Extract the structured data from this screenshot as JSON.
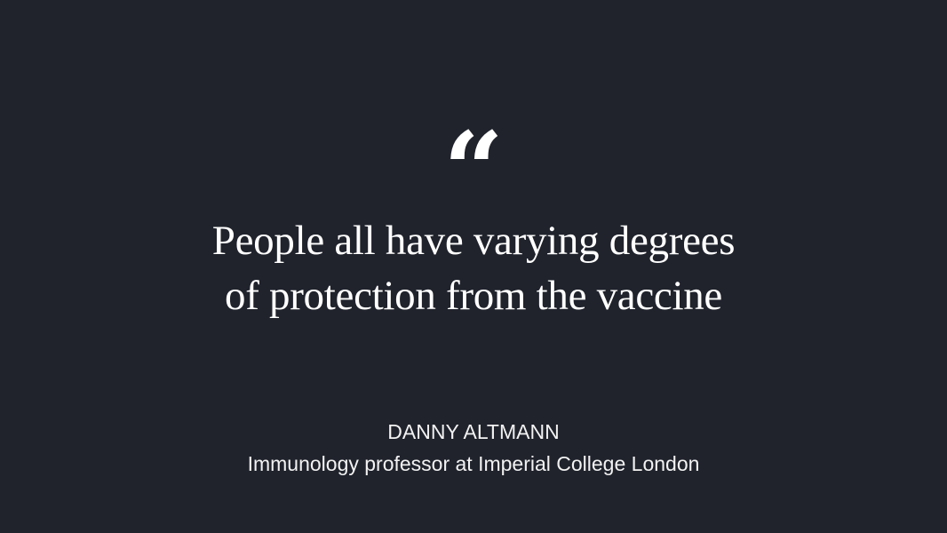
{
  "quote": {
    "mark": "“",
    "lines": [
      "People all have varying degrees",
      "of protection from the vaccine"
    ]
  },
  "speaker": {
    "name": "DANNY ALTMANN",
    "role": "Immunology professor at Imperial College London"
  },
  "colors": {
    "background": "#20232c",
    "text": "#ffffff"
  }
}
